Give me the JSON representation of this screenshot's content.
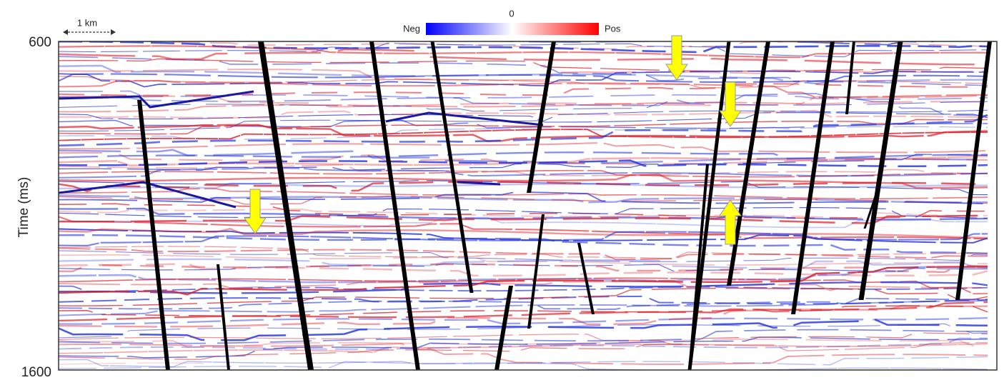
{
  "scale_bar": {
    "label": "1 km"
  },
  "colorbar": {
    "negative_label": "Neg",
    "zero_label": "0",
    "positive_label": "Pos"
  },
  "axis": {
    "label": "Time (ms)",
    "top_tick": "600",
    "bottom_tick": "1600"
  }
}
